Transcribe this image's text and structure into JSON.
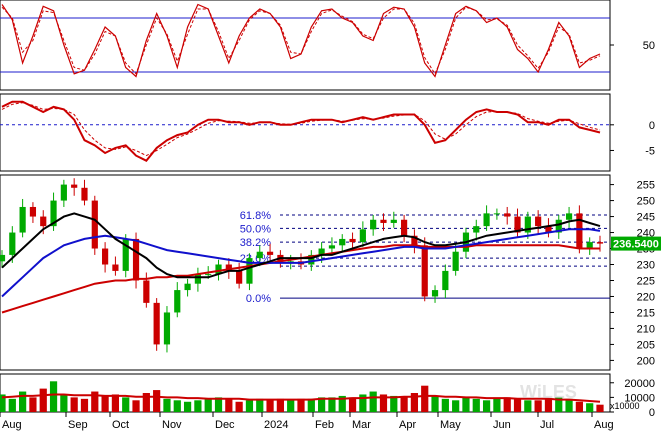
{
  "chart_data": [
    {
      "type": "line",
      "panel": "stochastic",
      "series": [],
      "ytick_labels": [
        "50"
      ],
      "y_ticks": [
        50
      ],
      "ylim": [
        0,
        100
      ],
      "reference_levels": [
        80,
        20
      ],
      "colors": {
        "main": "#cc0000",
        "signal": "#cc0000",
        "reference": "#1c1ccc"
      },
      "x": [
        0,
        10,
        20,
        30,
        40,
        50,
        60,
        70,
        80,
        90,
        100,
        110,
        120,
        130,
        140,
        150,
        160,
        170,
        180,
        190,
        200,
        210,
        220,
        230,
        240,
        250,
        260,
        270,
        280,
        290,
        300,
        310,
        320,
        330,
        340,
        350,
        360,
        370,
        380,
        390,
        400,
        410,
        420,
        430,
        440,
        450,
        460,
        470,
        480,
        490,
        500,
        510,
        520,
        530,
        540,
        550,
        560,
        570,
        580
      ],
      "main_values": [
        95,
        78,
        30,
        60,
        93,
        88,
        50,
        18,
        22,
        45,
        70,
        60,
        25,
        15,
        55,
        85,
        60,
        25,
        70,
        95,
        90,
        60,
        30,
        60,
        80,
        90,
        85,
        70,
        35,
        40,
        70,
        88,
        90,
        80,
        75,
        60,
        55,
        85,
        92,
        90,
        70,
        30,
        15,
        50,
        85,
        93,
        88,
        75,
        80,
        70,
        45,
        35,
        20,
        45,
        75,
        60,
        25,
        35,
        40
      ],
      "signal_values": [
        92,
        80,
        42,
        55,
        88,
        86,
        55,
        25,
        22,
        40,
        65,
        60,
        30,
        18,
        50,
        80,
        62,
        32,
        62,
        90,
        90,
        65,
        35,
        55,
        78,
        88,
        85,
        72,
        42,
        40,
        65,
        85,
        89,
        82,
        76,
        62,
        57,
        80,
        90,
        90,
        74,
        36,
        18,
        45,
        80,
        92,
        88,
        78,
        79,
        72,
        50,
        38,
        24,
        42,
        70,
        62,
        30,
        33,
        38
      ]
    },
    {
      "type": "line",
      "panel": "macd",
      "series": [],
      "ytick_labels": [
        "0",
        "-5"
      ],
      "y_ticks": [
        0,
        -5
      ],
      "ylim": [
        -9,
        6
      ],
      "reference_levels": [
        0
      ],
      "colors": {
        "main": "#cc0000",
        "signal": "#cc0000",
        "reference": "#1c1ccc"
      },
      "x": [
        0,
        10,
        20,
        30,
        40,
        50,
        60,
        70,
        80,
        90,
        100,
        110,
        120,
        130,
        140,
        150,
        160,
        170,
        180,
        190,
        200,
        210,
        220,
        230,
        240,
        250,
        260,
        270,
        280,
        290,
        300,
        310,
        320,
        330,
        340,
        350,
        360,
        370,
        380,
        390,
        400,
        410,
        420,
        430,
        440,
        450,
        460,
        470,
        480,
        490,
        500,
        510,
        520,
        530,
        540,
        550,
        560,
        570,
        580
      ],
      "main_values": [
        3.5,
        4.5,
        4.5,
        3.5,
        2.5,
        3.5,
        3.0,
        1.0,
        -3.0,
        -4.0,
        -5.5,
        -4.5,
        -4.0,
        -6.0,
        -7.0,
        -4.5,
        -3.0,
        -2.0,
        -1.5,
        0.0,
        1.0,
        1.0,
        0.5,
        0.5,
        0.0,
        0.5,
        0.5,
        0.0,
        0.0,
        0.5,
        1.0,
        1.0,
        1.0,
        0.5,
        1.0,
        1.5,
        1.0,
        1.5,
        2.0,
        2.0,
        2.0,
        0.0,
        -3.5,
        -3.0,
        -1.0,
        1.0,
        2.5,
        3.0,
        2.5,
        2.5,
        2.0,
        0.5,
        0.5,
        0.0,
        1.0,
        1.0,
        -0.5,
        -1.0,
        -1.5
      ],
      "signal_values": [
        3.0,
        4.0,
        4.3,
        3.8,
        3.0,
        3.2,
        3.0,
        2.0,
        -1.0,
        -3.0,
        -4.5,
        -4.8,
        -4.3,
        -5.0,
        -6.0,
        -5.0,
        -3.8,
        -2.5,
        -1.8,
        -0.8,
        0.3,
        0.8,
        0.7,
        0.6,
        0.3,
        0.4,
        0.5,
        0.2,
        0.1,
        0.3,
        0.7,
        0.9,
        1.0,
        0.7,
        0.9,
        1.2,
        1.1,
        1.3,
        1.7,
        1.9,
        2.0,
        0.8,
        -1.8,
        -2.8,
        -1.8,
        0.0,
        1.6,
        2.5,
        2.6,
        2.5,
        2.2,
        1.2,
        0.7,
        0.3,
        0.7,
        0.9,
        0.2,
        -0.5,
        -1.0
      ]
    },
    {
      "type": "candlestick",
      "panel": "price",
      "series": [],
      "ytick_labels": [
        "255",
        "250",
        "245",
        "240",
        "235",
        "230",
        "225",
        "220",
        "215",
        "210",
        "205",
        "200"
      ],
      "y_ticks": [
        255,
        250,
        245,
        240,
        235,
        230,
        225,
        220,
        215,
        210,
        205,
        200
      ],
      "ylim": [
        197,
        258
      ],
      "last_value_label": "236.5400",
      "fibonacci_levels": [
        {
          "label": "61.8%",
          "value": 245.5
        },
        {
          "label": "50.0%",
          "value": 241.3
        },
        {
          "label": "38.2%",
          "value": 237.0
        },
        {
          "label": "23.6%",
          "value": 232.0
        },
        {
          "label": "0.0%",
          "value": 219.5
        }
      ],
      "fib_extra_level": 229.5,
      "colors": {
        "up": "#00aa00",
        "down": "#cc0000",
        "ma_black": "#000000",
        "ma_blue": "#1010cc",
        "ma_red": "#cc0000",
        "fib_line": "#000080",
        "fib_text": "#1c1ccc",
        "last_label_bg": "#00aa00"
      },
      "x": [
        0,
        10,
        20,
        30,
        40,
        50,
        60,
        70,
        80,
        90,
        100,
        110,
        120,
        130,
        140,
        150,
        160,
        170,
        180,
        190,
        200,
        210,
        220,
        230,
        240,
        250,
        260,
        270,
        280,
        290,
        300,
        310,
        320,
        330,
        340,
        350,
        360,
        370,
        380,
        390,
        400,
        410,
        420,
        430,
        440,
        450,
        460,
        470,
        480,
        490,
        500,
        510,
        520,
        530,
        540,
        550,
        560,
        570,
        580
      ],
      "close": [
        233,
        240,
        248,
        245,
        242,
        250,
        255,
        254,
        250,
        235,
        230,
        228,
        238,
        225,
        218,
        205,
        215,
        222,
        224,
        227,
        227,
        230,
        228,
        224,
        232,
        234,
        233,
        231,
        231,
        230,
        233,
        235,
        236,
        238,
        237,
        241,
        244,
        243,
        244,
        239,
        236,
        220,
        222,
        228,
        234,
        240,
        242,
        246,
        246,
        245,
        240,
        245,
        242,
        240,
        244,
        246,
        235,
        237,
        236.54
      ],
      "ma_black": [
        229,
        232,
        235,
        238,
        241,
        243,
        245,
        246,
        245,
        244,
        241,
        238,
        236,
        234,
        232,
        229,
        227,
        226,
        226,
        226,
        226,
        227,
        228,
        228,
        229,
        230,
        231,
        232,
        232,
        232,
        232,
        233,
        233,
        234,
        235,
        236,
        237,
        238,
        238.5,
        239,
        238.5,
        237,
        236,
        236,
        236.5,
        237,
        238,
        239,
        239.5,
        240,
        240.5,
        241,
        241.5,
        242,
        242.5,
        243.5,
        244,
        243,
        242
      ],
      "ma_blue": [
        220,
        223,
        226,
        229,
        232,
        234,
        236,
        237,
        238,
        238.5,
        239,
        238.5,
        238,
        237.5,
        236.5,
        235.5,
        234.5,
        234,
        233.5,
        233,
        232.5,
        232,
        231.5,
        231,
        230.5,
        230.5,
        230.5,
        230.5,
        230.5,
        230.5,
        231,
        231.5,
        232,
        232.5,
        233,
        233.5,
        234,
        234.5,
        235,
        235.5,
        235.5,
        235,
        235,
        235,
        235.5,
        236,
        236.5,
        237,
        237.5,
        238,
        238.5,
        239,
        239.5,
        240,
        240.5,
        241,
        241,
        241,
        240.5
      ],
      "ma_red": [
        215,
        216,
        217,
        218,
        219,
        220,
        221,
        222,
        223,
        224,
        224.5,
        225,
        225,
        225.5,
        225.5,
        226,
        226,
        226.5,
        226.5,
        227,
        227.5,
        228,
        228.5,
        229,
        229.5,
        230,
        230.5,
        231,
        231.5,
        232,
        232.5,
        233,
        233.5,
        234,
        234.5,
        235,
        235.5,
        235.5,
        236,
        236,
        236,
        235.5,
        235.5,
        235.5,
        235.5,
        235.5,
        236,
        236,
        236,
        236,
        236,
        236,
        236,
        236,
        236,
        235.5,
        235,
        235,
        235
      ]
    },
    {
      "type": "bar",
      "panel": "volume",
      "series": [],
      "ytick_labels": [
        "20000",
        "10000",
        "0"
      ],
      "y_ticks": [
        20000,
        10000,
        0
      ],
      "ylim": [
        0,
        26000
      ],
      "unit_label": "x10000",
      "colors": {
        "up": "#00aa00",
        "down": "#cc0000",
        "avg": "#cc0000"
      },
      "x": [
        0,
        10,
        20,
        30,
        40,
        50,
        60,
        70,
        80,
        90,
        100,
        110,
        120,
        130,
        140,
        150,
        160,
        170,
        180,
        190,
        200,
        210,
        220,
        230,
        240,
        250,
        260,
        270,
        280,
        290,
        300,
        310,
        320,
        330,
        340,
        350,
        360,
        370,
        380,
        390,
        400,
        410,
        420,
        430,
        440,
        450,
        460,
        470,
        480,
        490,
        500,
        510,
        520,
        530,
        540,
        550,
        560,
        570,
        580
      ],
      "values": [
        12000,
        9000,
        14000,
        10000,
        16000,
        21000,
        12000,
        10000,
        9000,
        14000,
        11000,
        12000,
        10000,
        8000,
        13000,
        15000,
        9000,
        8000,
        7000,
        8000,
        9000,
        10000,
        9000,
        7000,
        8000,
        9000,
        8000,
        9000,
        8000,
        9000,
        9000,
        10000,
        10000,
        11000,
        10000,
        12000,
        14000,
        12000,
        11000,
        10000,
        13000,
        18000,
        11000,
        9000,
        8000,
        10000,
        9000,
        8000,
        9000,
        10000,
        9000,
        8000,
        8000,
        9000,
        10000,
        9000,
        7000,
        6000,
        5000
      ],
      "avg": [
        10000,
        10500,
        11000,
        11000,
        11500,
        12000,
        12000,
        11500,
        11500,
        11500,
        11000,
        11000,
        11000,
        10500,
        10500,
        10500,
        10000,
        10000,
        9500,
        9500,
        9000,
        9000,
        9000,
        9000,
        8500,
        8500,
        8500,
        8500,
        8500,
        8500,
        8500,
        9000,
        9000,
        9000,
        9500,
        9500,
        10000,
        10000,
        10000,
        10500,
        10500,
        11000,
        11000,
        10500,
        10500,
        10000,
        10000,
        9500,
        9500,
        9500,
        9000,
        9000,
        9000,
        9000,
        8500,
        8500,
        8000,
        7500,
        7000
      ]
    }
  ],
  "x_axis": {
    "labels": [
      "Aug",
      "Sep",
      "Oct",
      "Nov",
      "Dec",
      "2024",
      "Feb",
      "Mar",
      "Apr",
      "May",
      "Jun",
      "Jul",
      "Aug"
    ],
    "positions": [
      0,
      66,
      110,
      160,
      213,
      262,
      313,
      350,
      397,
      438,
      491,
      538,
      592
    ]
  },
  "watermark": "WiLES"
}
